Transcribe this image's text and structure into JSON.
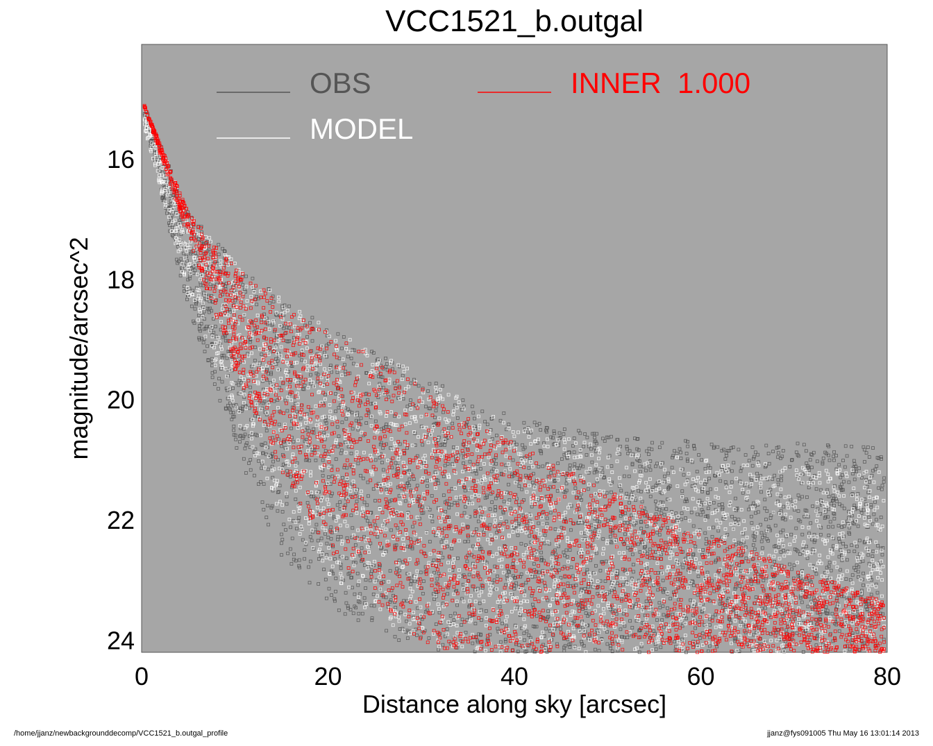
{
  "chart_data": {
    "type": "scatter",
    "title": "VCC1521_b.outgal",
    "xlabel": "Distance along sky [arcsec]",
    "ylabel": "magnitude/arcsec^2",
    "xlim": [
      0,
      80
    ],
    "ylim": [
      24.2,
      14.1
    ],
    "y_inverted": true,
    "x_ticks": [
      "0",
      "20",
      "40",
      "60",
      "80"
    ],
    "y_ticks": [
      "16",
      "18",
      "20",
      "22",
      "24"
    ],
    "grid": false,
    "legend_position": "top",
    "legend": [
      {
        "label": "OBS",
        "color": "#555555"
      },
      {
        "label": "MODEL",
        "color": "#ffffff"
      },
      {
        "label": "INNER  1.000",
        "color": "#ff0000"
      }
    ],
    "background_color": "#a6a6a6",
    "series": [
      {
        "name": "OBS",
        "color": "#555555",
        "upper_envelope": {
          "x": [
            0,
            5,
            10,
            15,
            20,
            25,
            30,
            40,
            50,
            60,
            70,
            80
          ],
          "y": [
            15.0,
            16.9,
            17.7,
            18.3,
            18.8,
            19.2,
            19.6,
            20.3,
            20.6,
            20.7,
            20.7,
            20.8
          ]
        },
        "lower_envelope": {
          "x": [
            0,
            5,
            10,
            15,
            20,
            25,
            30,
            33
          ],
          "y": [
            15.2,
            18.5,
            20.8,
            22.6,
            23.4,
            23.9,
            24.1,
            24.2
          ]
        }
      },
      {
        "name": "MODEL",
        "color": "#ffffff",
        "upper_envelope": {
          "x": [
            0,
            5,
            10,
            15,
            20,
            25,
            30,
            40,
            50,
            60,
            70,
            80
          ],
          "y": [
            15.0,
            16.9,
            17.7,
            18.3,
            18.8,
            19.2,
            19.6,
            20.4,
            20.8,
            21.0,
            21.1,
            21.2
          ]
        },
        "lower_envelope": {
          "x": [
            0,
            5,
            10,
            15,
            20,
            25,
            30,
            33
          ],
          "y": [
            15.3,
            18.3,
            20.3,
            21.9,
            22.9,
            23.6,
            24.1,
            24.2
          ]
        }
      },
      {
        "name": "INNER  1.000",
        "color": "#ff0000",
        "upper_envelope": {
          "x": [
            0,
            5,
            10,
            15,
            20,
            25,
            30,
            35,
            40,
            50,
            60,
            70,
            80
          ],
          "y": [
            15.0,
            16.9,
            17.8,
            18.4,
            18.9,
            19.3,
            19.8,
            20.3,
            20.7,
            21.5,
            22.2,
            22.8,
            23.35
          ]
        },
        "lower_envelope": {
          "x": [
            0,
            5,
            10,
            15,
            20,
            25,
            30,
            32.5
          ],
          "y": [
            15.0,
            17.3,
            19.5,
            21.2,
            22.5,
            23.3,
            24.0,
            24.2
          ]
        }
      }
    ]
  },
  "footer": {
    "path": "/home/jjanz/newbackgrounddecomp/VCC1521_b.outgal_profile",
    "stamp": "jjanz@fys091005  Thu May 16 13:01:14 2013"
  }
}
